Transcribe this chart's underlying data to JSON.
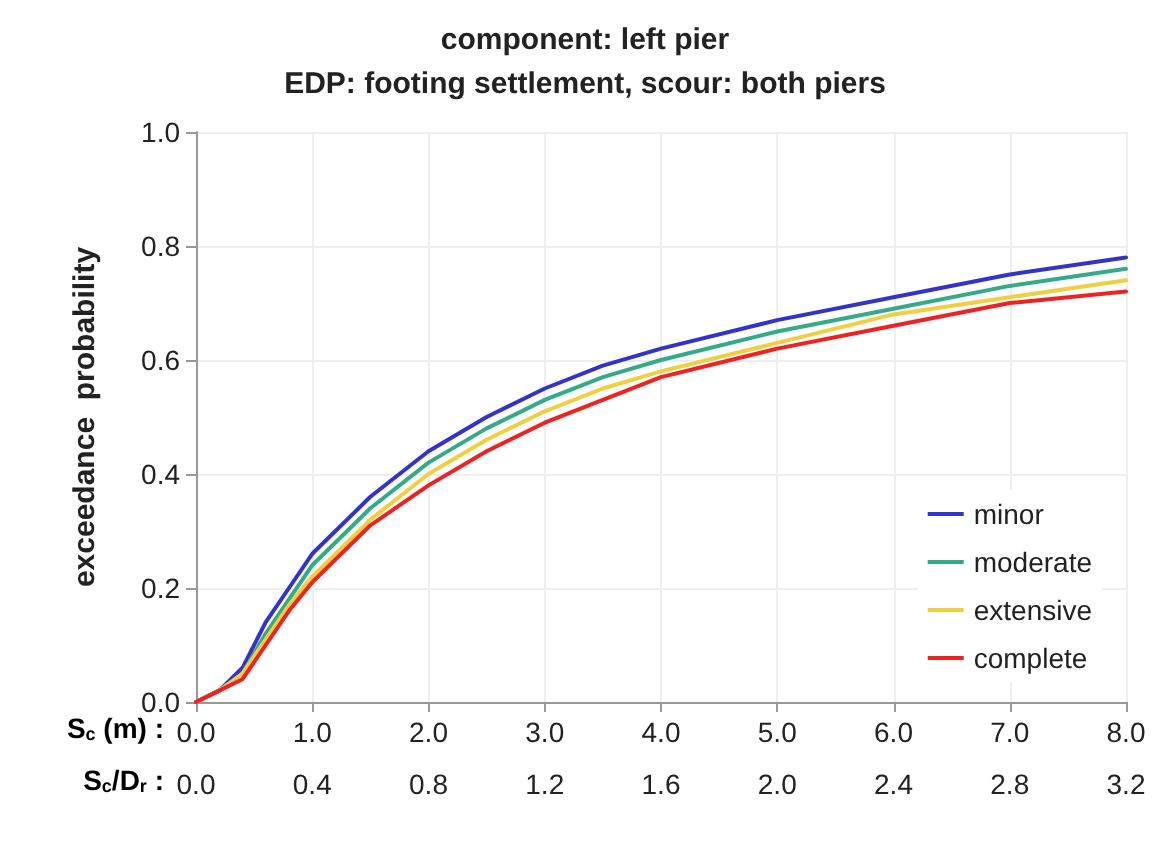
{
  "chart_data": {
    "type": "line",
    "title": "component: left pier\nEDP: footing settlement, scour: both piers",
    "ylabel": "exceedance  probability",
    "xlabel": "S$_{c}$ (m) :",
    "x2label": "S$_{c}$/D$_{r}$ :",
    "x": [
      0,
      0.2,
      0.4,
      0.6,
      0.8,
      1,
      1.5,
      2,
      2.5,
      3,
      3.5,
      4,
      5,
      6,
      7,
      8
    ],
    "series": [
      {
        "name": "minor",
        "color": "#3333cc",
        "values": [
          0,
          0.02,
          0.06,
          0.14,
          0.2,
          0.26,
          0.36,
          0.44,
          0.5,
          0.55,
          0.59,
          0.62,
          0.67,
          0.71,
          0.75,
          0.78
        ]
      },
      {
        "name": "moderate",
        "color": "#33aa88",
        "values": [
          0,
          0.02,
          0.05,
          0.12,
          0.18,
          0.24,
          0.34,
          0.42,
          0.48,
          0.53,
          0.57,
          0.6,
          0.65,
          0.69,
          0.73,
          0.76
        ]
      },
      {
        "name": "extensive",
        "color": "#f0d040",
        "values": [
          0,
          0.02,
          0.05,
          0.11,
          0.17,
          0.22,
          0.32,
          0.4,
          0.46,
          0.51,
          0.55,
          0.58,
          0.63,
          0.68,
          0.71,
          0.74
        ]
      },
      {
        "name": "complete",
        "color": "#ee2222",
        "values": [
          0,
          0.02,
          0.04,
          0.1,
          0.16,
          0.21,
          0.31,
          0.38,
          0.44,
          0.49,
          0.53,
          0.57,
          0.62,
          0.66,
          0.7,
          0.72
        ]
      }
    ],
    "xlim": [
      0,
      8
    ],
    "xticks": [
      {
        "value": 0,
        "label": "0.0"
      },
      {
        "value": 1,
        "label": "1.0"
      },
      {
        "value": 2,
        "label": "2.0"
      },
      {
        "value": 3,
        "label": "3.0"
      },
      {
        "value": 4,
        "label": "4.0"
      },
      {
        "value": 5,
        "label": "5.0"
      },
      {
        "value": 6,
        "label": "6.0"
      },
      {
        "value": 7,
        "label": "7.0"
      },
      {
        "value": 8,
        "label": "8.0"
      }
    ],
    "x2lim": [
      0,
      3.2
    ],
    "x2ticks": [
      {
        "value": 0,
        "label": "0.0"
      },
      0.4,
      0.8,
      1.2,
      1.6,
      {
        "value": 2,
        "label": "2.0"
      },
      2.4,
      2.8,
      3.2
    ],
    "ylim": [
      0,
      1
    ],
    "yticks": [
      {
        "value": 0,
        "label": "0.0"
      },
      0.2,
      0.4,
      0.6,
      0.8,
      {
        "value": 1,
        "label": "1.0"
      }
    ],
    "grid": true,
    "legend": "bottom right",
    "marker": "none",
    "line_style": "solid"
  }
}
